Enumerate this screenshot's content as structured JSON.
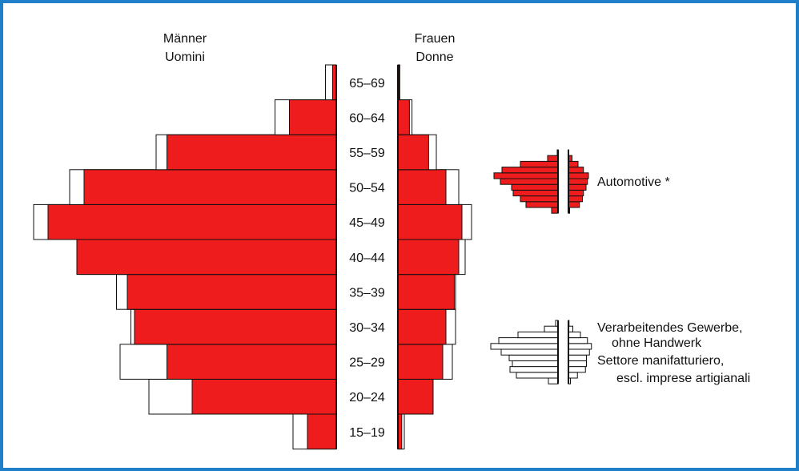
{
  "chart_data": {
    "type": "bar",
    "subtype": "population-pyramid",
    "categories": [
      "15–19",
      "20–24",
      "25–29",
      "30–34",
      "35–39",
      "40–44",
      "45–49",
      "50–54",
      "55–59",
      "60–64",
      "65–69"
    ],
    "header_left": [
      "Männer",
      "Uomini"
    ],
    "header_right": [
      "Frauen",
      "Donne"
    ],
    "scale_note": "relative bar lengths (no printed axis)",
    "series": [
      {
        "name": "Automotive *",
        "role": "primary",
        "color": "#ee1c1c",
        "men": [
          40,
          200,
          235,
          280,
          290,
          360,
          400,
          350,
          235,
          65,
          5
        ],
        "women": [
          6,
          55,
          70,
          75,
          88,
          95,
          100,
          75,
          48,
          18,
          2
        ]
      },
      {
        "name": "Verarbeitendes Gewerbe, ohne Handwerk / Settore manifatturiero, escl. imprese artigianali",
        "role": "comparison",
        "color": "#ffffff",
        "men": [
          60,
          260,
          300,
          285,
          305,
          355,
          420,
          370,
          250,
          85,
          15
        ],
        "women": [
          10,
          45,
          85,
          90,
          90,
          105,
          115,
          95,
          60,
          22,
          3
        ]
      }
    ],
    "legend": [
      {
        "label_lines": [
          "Automotive *"
        ],
        "color": "#ee1c1c"
      },
      {
        "label_lines": [
          "Verarbeitendes Gewerbe,",
          "ohne Handwerk",
          "Settore manifatturiero,",
          "escl. imprese artigianali"
        ],
        "color": "#ffffff"
      }
    ],
    "grid": false
  }
}
